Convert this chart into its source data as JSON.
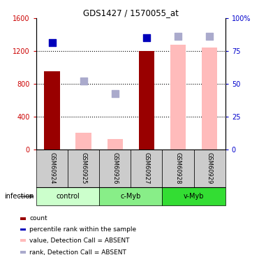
{
  "title": "GDS1427 / 1570055_at",
  "samples": [
    "GSM60924",
    "GSM60925",
    "GSM60926",
    "GSM60927",
    "GSM60928",
    "GSM60929"
  ],
  "count_values": [
    950,
    null,
    null,
    1200,
    null,
    null
  ],
  "absent_value_values": [
    null,
    200,
    130,
    null,
    1280,
    1240
  ],
  "rank_present_values": [
    1300,
    null,
    null,
    1360,
    null,
    null
  ],
  "rank_absent_values": [
    null,
    830,
    680,
    null,
    1380,
    1380
  ],
  "ylim_left": [
    0,
    1600
  ],
  "ylim_right": [
    0,
    100
  ],
  "yticks_left": [
    0,
    400,
    800,
    1200,
    1600
  ],
  "yticks_right": [
    0,
    25,
    50,
    75,
    100
  ],
  "groups": [
    {
      "label": "control",
      "samples": [
        0,
        1
      ],
      "color": "#ccffcc"
    },
    {
      "label": "c-Myb",
      "samples": [
        2,
        3
      ],
      "color": "#88ee88"
    },
    {
      "label": "v-Myb",
      "samples": [
        4,
        5
      ],
      "color": "#33dd33"
    }
  ],
  "bar_width": 0.5,
  "dark_red": "#990000",
  "pink": "#ffbbbb",
  "dark_blue": "#0000bb",
  "light_blue": "#aaaacc",
  "marker_size_sq": 55,
  "left_axis_color": "#cc0000",
  "right_axis_color": "#0000cc",
  "infection_label": "infection",
  "sample_label_bg": "#cccccc",
  "legend_items": [
    {
      "color": "#990000",
      "label": "count"
    },
    {
      "color": "#0000bb",
      "label": "percentile rank within the sample"
    },
    {
      "color": "#ffbbbb",
      "label": "value, Detection Call = ABSENT"
    },
    {
      "color": "#aaaacc",
      "label": "rank, Detection Call = ABSENT"
    }
  ]
}
